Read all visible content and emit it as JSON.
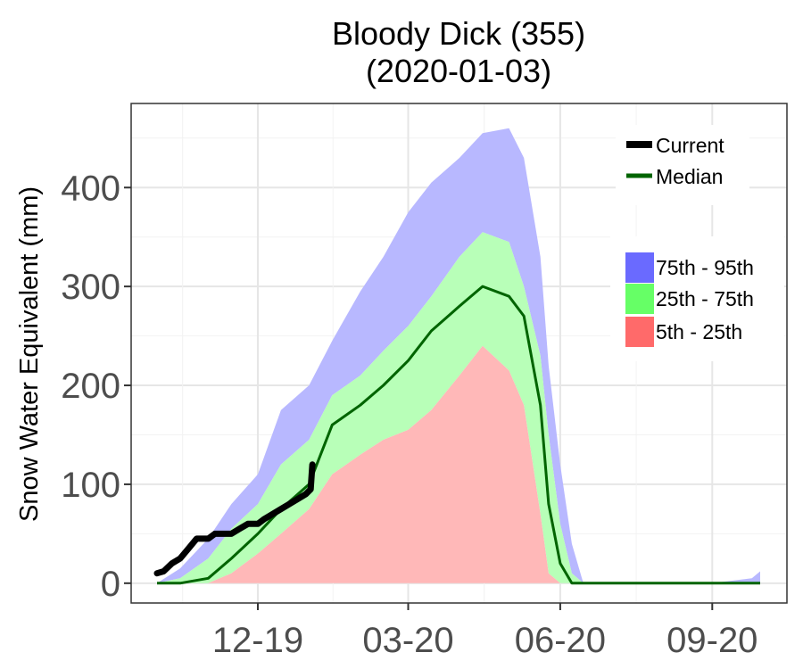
{
  "chart_data": {
    "type": "area",
    "title": "Bloody Dick (355)",
    "subtitle": "(2020-01-03)",
    "xlabel": "",
    "ylabel": "Snow Water Equivalent (mm)",
    "x_tick_labels": [
      "12-19",
      "03-20",
      "06-20",
      "09-20"
    ],
    "x_tick_dates": [
      "2019-12-01",
      "2020-03-01",
      "2020-06-01",
      "2020-09-01"
    ],
    "x_range": [
      "2019-10-01",
      "2020-09-30"
    ],
    "y_ticks": [
      0,
      100,
      200,
      300,
      400
    ],
    "ylim": [
      -20,
      485
    ],
    "grid": true,
    "legend_lines": [
      {
        "name": "Current",
        "color": "#000000"
      },
      {
        "name": "Median",
        "color": "#006400"
      }
    ],
    "legend_bands": [
      {
        "name": "75th - 95th",
        "color": "#6a6aff"
      },
      {
        "name": "25th - 75th",
        "color": "#66ff66"
      },
      {
        "name": "5th - 25th",
        "color": "#ff6a6a"
      }
    ],
    "band_colors": {
      "p95": "#b8b8ff",
      "p75": "#b8ffb8",
      "p25": "#ffb8b8"
    },
    "x": [
      "2019-10-01",
      "2019-10-15",
      "2019-11-01",
      "2019-11-15",
      "2019-12-01",
      "2019-12-15",
      "2020-01-01",
      "2020-01-15",
      "2020-02-01",
      "2020-02-15",
      "2020-03-01",
      "2020-03-15",
      "2020-04-01",
      "2020-04-15",
      "2020-05-01",
      "2020-05-10",
      "2020-05-20",
      "2020-05-25",
      "2020-06-01",
      "2020-06-08",
      "2020-06-15",
      "2020-07-01",
      "2020-08-01",
      "2020-09-01",
      "2020-09-25",
      "2020-09-30"
    ],
    "series": [
      {
        "name": "95th",
        "values": [
          0,
          15,
          45,
          80,
          110,
          175,
          200,
          245,
          295,
          330,
          375,
          405,
          430,
          455,
          460,
          430,
          330,
          220,
          120,
          40,
          0,
          0,
          0,
          0,
          5,
          12
        ]
      },
      {
        "name": "75th",
        "values": [
          0,
          5,
          25,
          55,
          80,
          120,
          145,
          190,
          210,
          235,
          260,
          290,
          330,
          355,
          345,
          300,
          230,
          150,
          60,
          10,
          0,
          0,
          0,
          0,
          0,
          0
        ]
      },
      {
        "name": "Median",
        "values": [
          0,
          0,
          5,
          25,
          50,
          75,
          100,
          160,
          180,
          200,
          225,
          255,
          280,
          300,
          290,
          270,
          180,
          80,
          20,
          0,
          0,
          0,
          0,
          0,
          0,
          0
        ]
      },
      {
        "name": "25th",
        "values": [
          0,
          0,
          0,
          10,
          30,
          50,
          75,
          110,
          130,
          145,
          155,
          175,
          210,
          240,
          215,
          180,
          70,
          10,
          0,
          0,
          0,
          0,
          0,
          0,
          0,
          0
        ]
      },
      {
        "name": "5th",
        "values": [
          0,
          0,
          0,
          0,
          0,
          0,
          0,
          0,
          0,
          0,
          0,
          0,
          0,
          0,
          0,
          0,
          0,
          0,
          0,
          0,
          0,
          0,
          0,
          0,
          0,
          0
        ]
      }
    ],
    "current": {
      "name": "Current",
      "x": [
        "2019-10-01",
        "2019-10-05",
        "2019-10-10",
        "2019-10-15",
        "2019-10-20",
        "2019-10-25",
        "2019-11-01",
        "2019-11-05",
        "2019-11-10",
        "2019-11-15",
        "2019-11-20",
        "2019-11-25",
        "2019-12-01",
        "2019-12-05",
        "2019-12-10",
        "2019-12-15",
        "2019-12-20",
        "2019-12-25",
        "2019-12-30",
        "2020-01-02",
        "2020-01-03"
      ],
      "values": [
        10,
        12,
        20,
        25,
        35,
        45,
        45,
        50,
        50,
        50,
        55,
        60,
        60,
        65,
        70,
        75,
        80,
        85,
        90,
        95,
        120
      ]
    },
    "median_color": "#006400",
    "current_color": "#000000"
  }
}
